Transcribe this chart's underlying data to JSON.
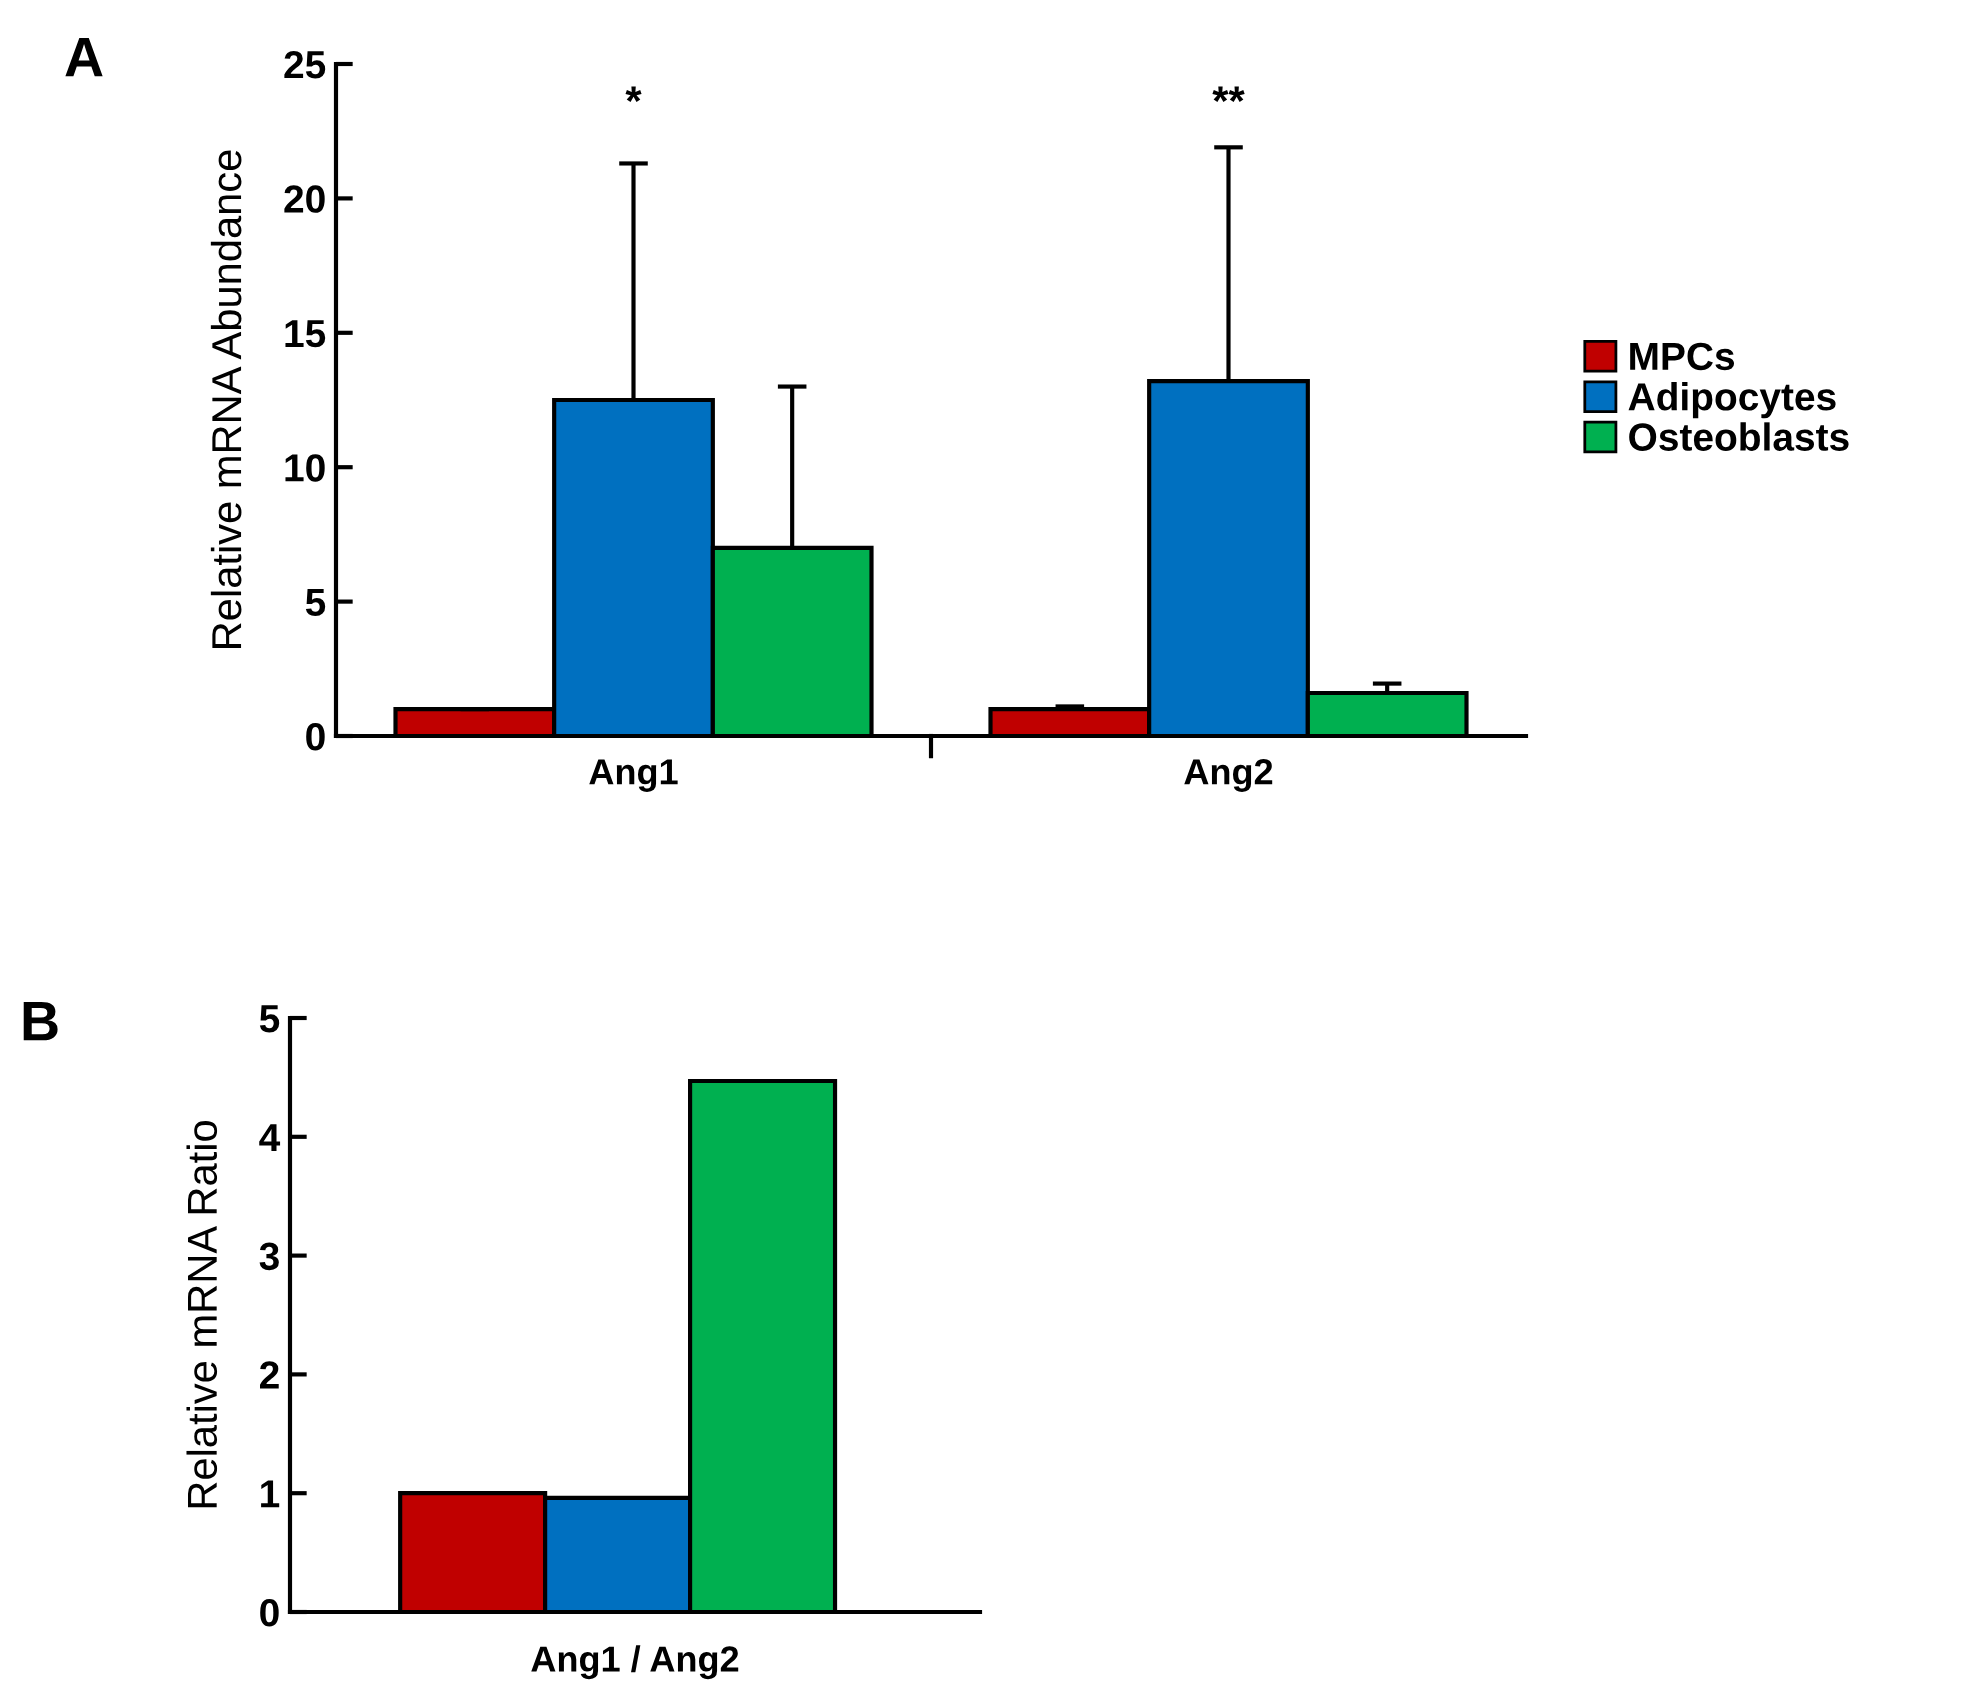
{
  "chart_data": [
    {
      "type": "bar",
      "categories": [
        "Ang1",
        "Ang2"
      ],
      "ylabel": "Relative mRNA Abundance",
      "ylim": [
        0,
        25
      ],
      "yticks": [
        0,
        5,
        10,
        15,
        20,
        25
      ],
      "legend": "right",
      "grid": false,
      "series": [
        {
          "name": "MPCs",
          "color": "#c00000",
          "values": [
            1.0,
            1.0
          ],
          "errors": [
            [
              1.0,
              1.0
            ],
            [
              1.0,
              1.1
            ]
          ]
        },
        {
          "name": "Adipocytes",
          "color": "#0070c0",
          "values": [
            12.5,
            13.2
          ],
          "errors": [
            [
              12.5,
              21.3
            ],
            [
              13.2,
              21.9
            ]
          ]
        },
        {
          "name": "Osteoblasts",
          "color": "#00b050",
          "values": [
            7.0,
            1.6
          ],
          "errors": [
            [
              7.0,
              13.0
            ],
            [
              1.6,
              1.95
            ]
          ]
        }
      ],
      "annotations": [
        "A",
        "*",
        "**"
      ]
    },
    {
      "type": "bar",
      "categories": [
        null,
        null,
        null
      ],
      "xlabel": "Ang1 / Ang2",
      "ylabel": "Relative mRNA Ratio",
      "ylim": [
        0,
        5
      ],
      "yticks": [
        0,
        1,
        2,
        3,
        4,
        5
      ],
      "grid": false,
      "tick_labels": "y",
      "series": [
        {
          "colors": [
            "#c00000",
            "#0070c0",
            "#00b050"
          ],
          "values": [
            1.0,
            0.96,
            4.47
          ]
        }
      ],
      "annotations": [
        "B"
      ]
    }
  ]
}
